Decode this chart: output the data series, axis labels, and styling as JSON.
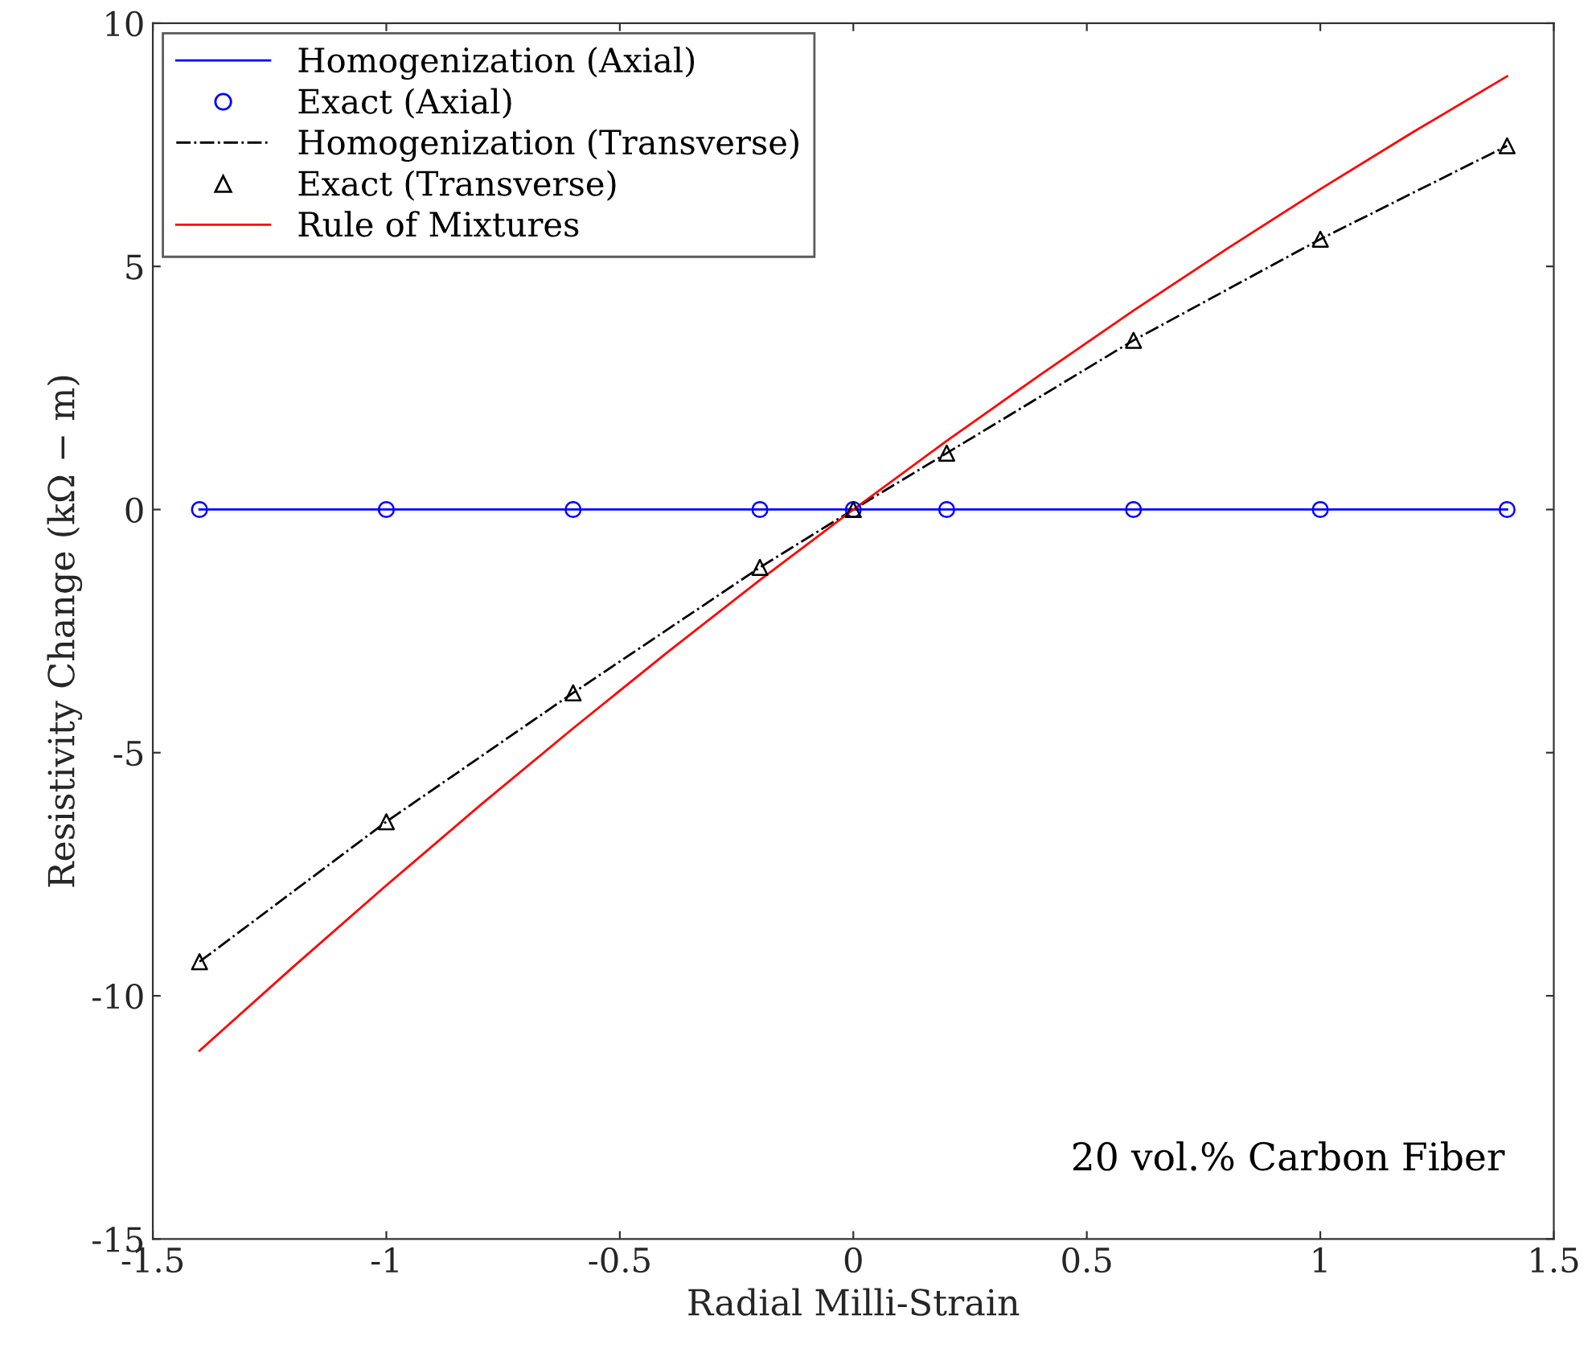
{
  "chart_data": {
    "type": "line",
    "xlabel": "Radial Milli-Strain",
    "ylabel": "Resistivity Change (kΩ − m)",
    "xlim": [
      -1.5,
      1.5
    ],
    "xticks": [
      -1.5,
      -1,
      -0.5,
      0,
      0.5,
      1,
      1.5
    ],
    "ylim": [
      -15,
      10
    ],
    "yticks": [
      -15,
      -10,
      -5,
      0,
      5,
      10
    ],
    "grid": false,
    "legend": "top left",
    "annotations": [
      "20 vol.% Carbon Fiber"
    ],
    "series": [
      {
        "name": "Homogenization (Axial)",
        "color": "#0000ff",
        "line_style": "solid",
        "marker": "none",
        "x": [
          -1.4,
          1.4
        ],
        "values": [
          0,
          0
        ]
      },
      {
        "name": "Exact (Axial)",
        "type": "scatter",
        "color": "#0000ff",
        "marker": "circle",
        "x": [
          -1.4,
          -1.0,
          -0.6,
          -0.2,
          0,
          0.2,
          0.6,
          1.0,
          1.4
        ],
        "values": [
          0,
          0,
          0,
          0,
          0,
          0,
          0,
          0,
          0
        ]
      },
      {
        "name": "Homogenization (Transverse)",
        "color": "#000000",
        "line_style": "dashdot",
        "marker": "none",
        "x": [
          -1.4,
          -1.0,
          -0.6,
          -0.2,
          0,
          0.2,
          0.6,
          1.0,
          1.4
        ],
        "values": [
          -9.3,
          -6.42,
          -3.77,
          -1.19,
          0,
          1.16,
          3.48,
          5.56,
          7.48
        ]
      },
      {
        "name": "Exact (Transverse)",
        "type": "scatter",
        "color": "#000000",
        "marker": "triangle",
        "x": [
          -1.4,
          -1.0,
          -0.6,
          -0.2,
          0,
          0.2,
          0.6,
          1.0,
          1.4
        ],
        "values": [
          -9.3,
          -6.42,
          -3.77,
          -1.19,
          0,
          1.16,
          3.48,
          5.56,
          7.48
        ]
      },
      {
        "name": "Rule of Mixtures",
        "color": "#ff0000",
        "line_style": "solid",
        "marker": "none",
        "x": [
          -1.4,
          -1.2,
          -1.0,
          -0.8,
          -0.6,
          -0.4,
          -0.2,
          0,
          0.2,
          0.4,
          0.6,
          0.8,
          1.0,
          1.2,
          1.4
        ],
        "values": [
          -11.13,
          -9.41,
          -7.73,
          -6.09,
          -4.5,
          -2.95,
          -1.45,
          0,
          1.41,
          2.77,
          4.09,
          5.36,
          6.59,
          7.77,
          8.91
        ]
      }
    ]
  }
}
